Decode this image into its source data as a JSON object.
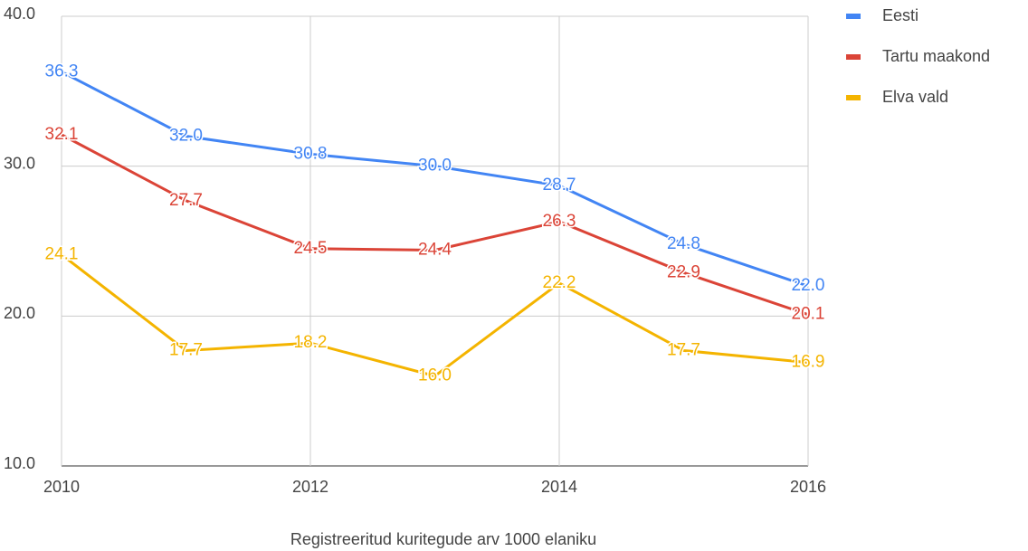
{
  "chart_data": {
    "type": "line",
    "x_label": "Registreeritud kuritegude arv 1000 elaniku",
    "x": [
      2010,
      2011,
      2012,
      2013,
      2014,
      2015,
      2016
    ],
    "xlim": [
      2010,
      2016
    ],
    "xticks": [
      2010,
      2012,
      2014,
      2016
    ],
    "ylim": [
      10,
      40
    ],
    "yticks": [
      {
        "value": 10,
        "label": "10.0"
      },
      {
        "value": 20,
        "label": "20.0"
      },
      {
        "value": 30,
        "label": "30.0"
      },
      {
        "value": 40,
        "label": "40.0"
      }
    ],
    "grid": true,
    "legend": "right",
    "series": [
      {
        "name": "Eesti",
        "color": "#4285f4",
        "values": [
          36.3,
          32.0,
          30.8,
          30.0,
          28.7,
          24.8,
          22.0
        ],
        "value_labels": [
          "36.3",
          "32.0",
          "30.8",
          "30.0",
          "28.7",
          "24.8",
          "22.0"
        ]
      },
      {
        "name": "Tartu maakond",
        "color": "#db4437",
        "values": [
          32.1,
          27.7,
          24.5,
          24.4,
          26.3,
          22.9,
          20.1
        ],
        "value_labels": [
          "32.1",
          "27.7",
          "24.5",
          "24.4",
          "26.3",
          "22.9",
          "20.1"
        ]
      },
      {
        "name": "Elva vald",
        "color": "#f4b400",
        "values": [
          24.1,
          17.7,
          18.2,
          16.0,
          22.2,
          17.7,
          16.9
        ],
        "value_labels": [
          "24.1",
          "17.7",
          "18.2",
          "16.0",
          "22.2",
          "17.7",
          "16.9"
        ]
      }
    ]
  }
}
